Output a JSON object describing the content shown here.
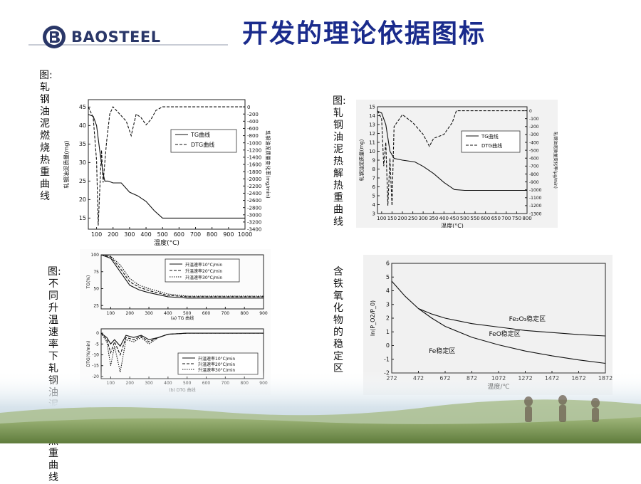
{
  "brand": {
    "name": "BAOSTEEL",
    "colors": {
      "primary": "#2a3768",
      "title": "#1a2b8c"
    }
  },
  "slide": {
    "title": "开发的理论依据图标"
  },
  "captions": {
    "c1": "图:轧钢油泥燃烧热重曲线",
    "c2": "图:轧钢油泥热解热重曲线",
    "c3": "图:不同升温速率下轧钢油泥燃烧热重曲线",
    "c4": "含铁氧化物的稳定区"
  },
  "chart_data": [
    {
      "type": "line",
      "xlabel": "温度(°C)",
      "ylabel_left": "轧钢油泥质量(mg)",
      "ylabel_right": "轧钢油泥质量变化率(mg/min)",
      "xticks": [
        "100",
        "200",
        "300",
        "400",
        "500",
        "600",
        "700",
        "800",
        "900",
        "1000"
      ],
      "yticks_left": [
        "45",
        "40",
        "35",
        "30",
        "25",
        "20",
        "15"
      ],
      "yticks_right": [
        "0",
        "-200",
        "-400",
        "-600",
        "-800",
        "-1000",
        "-1200",
        "-1400",
        "-1600",
        "-1800",
        "-2000",
        "-2200",
        "-2400",
        "-2600",
        "-2800",
        "-3000",
        "-3200",
        "-3400"
      ],
      "xlim": [
        50,
        1000
      ],
      "ylim_left": [
        12,
        47
      ],
      "ylim_right": [
        -3400,
        200
      ],
      "series": [
        {
          "name": "TG曲线",
          "style": "solid",
          "x": [
            50,
            80,
            100,
            120,
            140,
            150,
            170,
            200,
            250,
            300,
            350,
            400,
            450,
            500,
            600,
            700,
            800,
            900,
            1000
          ],
          "y": [
            43,
            42.5,
            40,
            33,
            27,
            25,
            25,
            24.5,
            24.5,
            22,
            21,
            19.5,
            17,
            15,
            15,
            15,
            15,
            15,
            15
          ]
        },
        {
          "name": "DTG曲线",
          "style": "dashed",
          "x": [
            50,
            80,
            100,
            110,
            130,
            140,
            160,
            180,
            200,
            240,
            280,
            310,
            340,
            370,
            400,
            430,
            460,
            500,
            600,
            700,
            800,
            900,
            1000
          ],
          "y": [
            0,
            -300,
            -1500,
            -3300,
            -1200,
            -2100,
            -1000,
            -200,
            0,
            -200,
            -400,
            -800,
            -200,
            -300,
            -500,
            -350,
            -100,
            0,
            0,
            0,
            0,
            0,
            0
          ]
        }
      ]
    },
    {
      "type": "line",
      "xlabel": "温度(°C)",
      "ylabel_left": "轧钢油泥质量(mg)",
      "ylabel_right": "轧钢油泥质量变化率(µg/min)",
      "xticks": [
        "100",
        "150",
        "200",
        "250",
        "300",
        "350",
        "400",
        "450",
        "500",
        "550",
        "600",
        "650",
        "700",
        "750",
        "800"
      ],
      "yticks_left": [
        "15",
        "14",
        "13",
        "12",
        "11",
        "10",
        "9",
        "8",
        "7",
        "6",
        "5",
        "4",
        "3"
      ],
      "yticks_right": [
        "0",
        "-100",
        "-200",
        "-300",
        "-400",
        "-500",
        "-600",
        "-700",
        "-800",
        "-900",
        "-1000",
        "-1100",
        "-1200",
        "-1300"
      ],
      "xlim": [
        80,
        800
      ],
      "ylim_left": [
        3,
        15
      ],
      "ylim_right": [
        -1300,
        50
      ],
      "series": [
        {
          "name": "TG曲线",
          "style": "solid",
          "x": [
            80,
            100,
            120,
            140,
            160,
            200,
            260,
            300,
            350,
            400,
            450,
            500,
            600,
            700,
            800
          ],
          "y": [
            14.5,
            14.3,
            13,
            10,
            9.2,
            9,
            8.8,
            8.3,
            7.5,
            6.5,
            5.7,
            5.6,
            5.6,
            5.6,
            5.6
          ]
        },
        {
          "name": "DTG曲线",
          "style": "dashed",
          "x": [
            80,
            100,
            110,
            120,
            130,
            140,
            150,
            160,
            200,
            250,
            300,
            330,
            350,
            400,
            440,
            460,
            500,
            600,
            700,
            800
          ],
          "y": [
            0,
            -100,
            -700,
            -400,
            -1200,
            -600,
            -1200,
            -200,
            -50,
            -150,
            -300,
            -450,
            -350,
            -300,
            -150,
            0,
            0,
            0,
            0,
            0
          ]
        }
      ]
    },
    {
      "type": "line",
      "title": "(a) TG 曲线",
      "ylabel": "TG(%)",
      "xticks": [
        "100",
        "200",
        "300",
        "400",
        "500",
        "600",
        "700",
        "800",
        "900"
      ],
      "yticks": [
        "100",
        "75",
        "50",
        "25"
      ],
      "xlim": [
        50,
        900
      ],
      "ylim": [
        20,
        100
      ],
      "series": [
        {
          "name": "升温速率10°C/min",
          "style": "solid",
          "x": [
            50,
            100,
            150,
            200,
            250,
            300,
            400,
            500,
            600,
            700,
            800,
            900
          ],
          "y": [
            100,
            95,
            75,
            55,
            48,
            44,
            38,
            36,
            36,
            36,
            36,
            36
          ]
        },
        {
          "name": "升温速率20°C/min",
          "style": "dashed",
          "x": [
            50,
            100,
            150,
            200,
            250,
            300,
            400,
            500,
            600,
            700,
            800,
            900
          ],
          "y": [
            100,
            97,
            80,
            60,
            52,
            47,
            40,
            38,
            38,
            38,
            38,
            38
          ]
        },
        {
          "name": "升温速率30°C/min",
          "style": "dotted",
          "x": [
            50,
            100,
            150,
            200,
            250,
            300,
            400,
            500,
            600,
            700,
            800,
            900
          ],
          "y": [
            100,
            98,
            85,
            65,
            55,
            50,
            42,
            39,
            39,
            39,
            39,
            39
          ]
        }
      ]
    },
    {
      "type": "line",
      "title": "(b) DTG 曲线",
      "ylabel": "DTG(%/min)",
      "xticks": [
        "100",
        "200",
        "300",
        "400",
        "500",
        "600",
        "700",
        "800",
        "900"
      ],
      "yticks": [
        "0",
        "-5",
        "-10",
        "-15",
        "-20"
      ],
      "xlim": [
        50,
        900
      ],
      "ylim": [
        -21,
        2
      ],
      "series": [
        {
          "name": "升温速率10°C/min",
          "style": "solid",
          "x": [
            50,
            80,
            100,
            120,
            150,
            180,
            220,
            260,
            300,
            350,
            400,
            500,
            900
          ],
          "y": [
            0,
            -2,
            -5,
            -3,
            -6,
            -1,
            -2,
            -1,
            -3,
            -2,
            -0.5,
            0,
            0
          ]
        },
        {
          "name": "升温速率20°C/min",
          "style": "dashed",
          "x": [
            50,
            80,
            100,
            120,
            150,
            180,
            220,
            260,
            300,
            350,
            400,
            500,
            900
          ],
          "y": [
            0,
            -3,
            -9,
            -4,
            -10,
            -2,
            -3,
            -1.5,
            -4,
            -2,
            -0.5,
            0,
            0
          ]
        },
        {
          "name": "升温速率30°C/min",
          "style": "dotted",
          "x": [
            50,
            80,
            100,
            120,
            150,
            180,
            220,
            260,
            300,
            350,
            400,
            500,
            900
          ],
          "y": [
            0,
            -4,
            -15,
            -6,
            -18,
            -3,
            -4,
            -2,
            -5,
            -2,
            -0.5,
            0,
            0
          ]
        }
      ]
    },
    {
      "type": "line",
      "xlabel": "温度/℃",
      "ylabel": "ln(P_O2/P_0)",
      "xticks": [
        "272",
        "472",
        "672",
        "872",
        "1072",
        "1272",
        "1472",
        "1672",
        "1872"
      ],
      "yticks": [
        "6",
        "5",
        "4",
        "3",
        "2",
        "1",
        "0",
        "-1",
        "-2"
      ],
      "xlim": [
        272,
        1872
      ],
      "ylim": [
        -2,
        6
      ],
      "annotations": [
        "Fe₂O₃稳定区",
        "FeO稳定区",
        "Fe稳定区"
      ],
      "series": [
        {
          "name": "upper",
          "style": "solid",
          "x": [
            272,
            372,
            472,
            572,
            672,
            872,
            1072,
            1272,
            1472,
            1672,
            1872
          ],
          "y": [
            4.7,
            3.6,
            2.7,
            2.3,
            2.0,
            1.6,
            1.35,
            1.1,
            0.95,
            0.8,
            0.7
          ]
        },
        {
          "name": "lower",
          "style": "solid",
          "x": [
            472,
            572,
            672,
            872,
            1072,
            1272,
            1472,
            1672,
            1872
          ],
          "y": [
            2.7,
            2.0,
            1.4,
            0.6,
            0.05,
            -0.4,
            -0.75,
            -1.05,
            -1.3
          ]
        }
      ]
    }
  ]
}
